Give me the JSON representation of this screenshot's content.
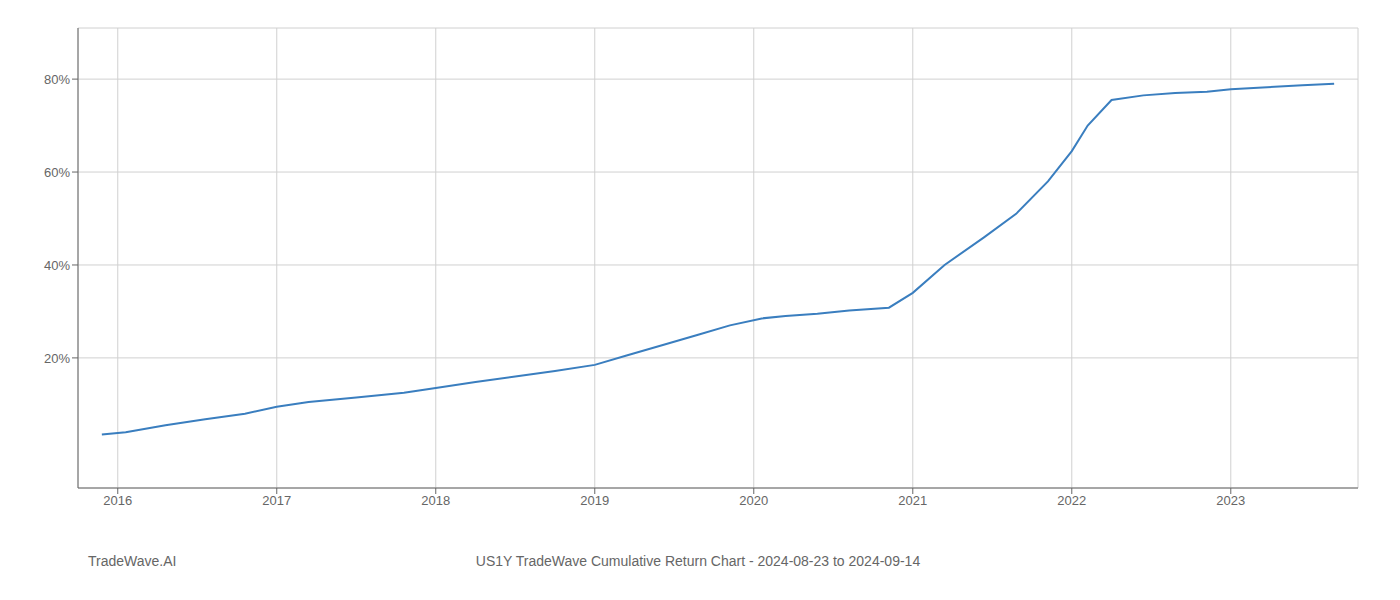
{
  "chart_data": {
    "type": "line",
    "title": "US1Y TradeWave Cumulative Return Chart - 2024-08-23 to 2024-09-14",
    "annotations": [
      "TradeWave.AI"
    ],
    "x": [
      2015.9,
      2016.05,
      2016.3,
      2016.55,
      2016.8,
      2017.0,
      2017.2,
      2017.5,
      2017.8,
      2018.0,
      2018.25,
      2018.5,
      2018.75,
      2019.0,
      2019.2,
      2019.45,
      2019.65,
      2019.85,
      2020.05,
      2020.2,
      2020.4,
      2020.6,
      2020.85,
      2021.0,
      2021.2,
      2021.45,
      2021.65,
      2021.85,
      2022.0,
      2022.1,
      2022.25,
      2022.45,
      2022.65,
      2022.85,
      2023.0,
      2023.2,
      2023.45,
      2023.65
    ],
    "values": [
      3.5,
      4.0,
      5.5,
      6.8,
      8.0,
      9.5,
      10.5,
      11.5,
      12.5,
      13.5,
      14.8,
      16.0,
      17.2,
      18.5,
      20.5,
      23.0,
      25.0,
      27.0,
      28.5,
      29.0,
      29.5,
      30.2,
      30.8,
      34.0,
      40.0,
      46.0,
      51.0,
      58.0,
      64.5,
      70.0,
      75.5,
      76.5,
      77.0,
      77.3,
      77.8,
      78.2,
      78.7,
      79.0
    ],
    "color": "#3a7ebf",
    "xlim": [
      2015.75,
      2023.8
    ],
    "xticks": [
      2016,
      2017,
      2018,
      2019,
      2020,
      2021,
      2022,
      2023
    ],
    "ylim": [
      -8,
      91
    ],
    "yticks": [
      {
        "value": 20,
        "label": "20%"
      },
      {
        "value": 40,
        "label": "40%"
      },
      {
        "value": 60,
        "label": "60%"
      },
      {
        "value": 80,
        "label": "80%"
      }
    ],
    "grid": true
  }
}
